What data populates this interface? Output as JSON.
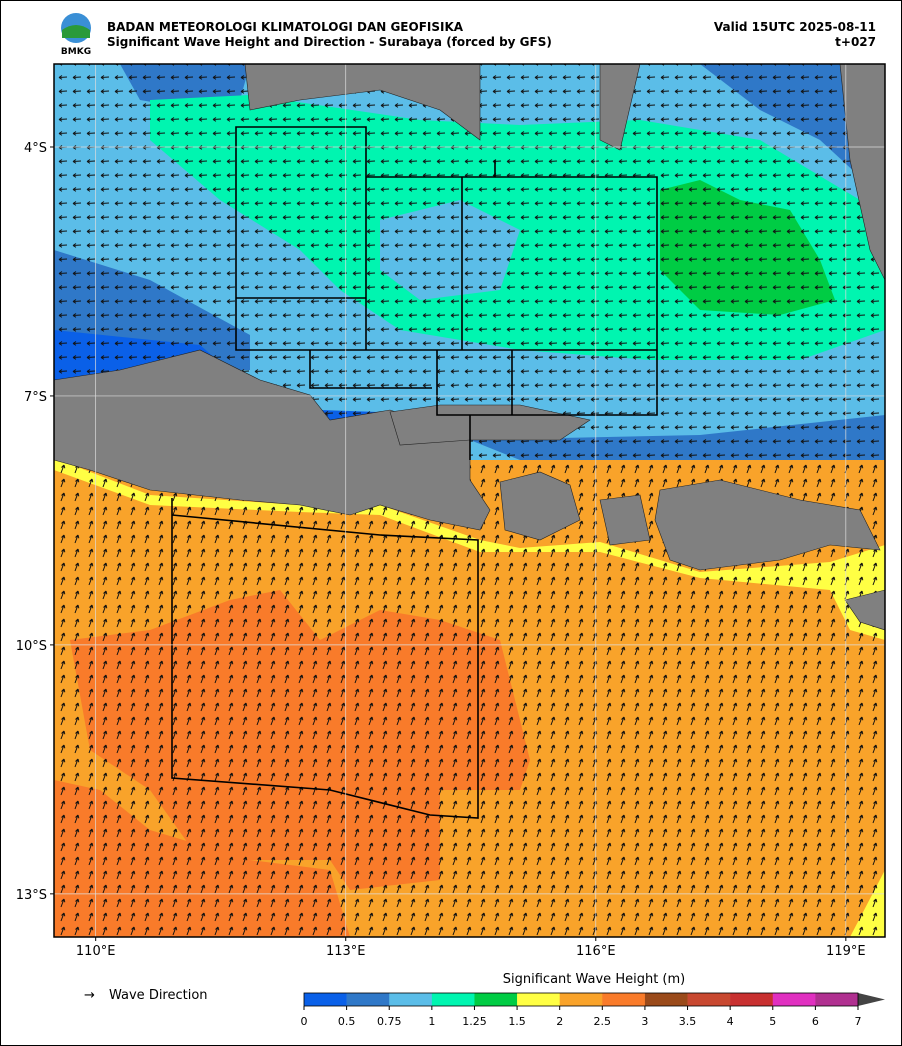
{
  "header": {
    "logo_text": "BMKG",
    "title": "BADAN METEOROLOGI KLIMATOLOGI DAN GEOFISIKA",
    "subtitle": "Significant Wave Height and Direction - Surabaya (forced by GFS)",
    "valid": "Valid 15UTC 2025-08-11",
    "lead": "t+027"
  },
  "map": {
    "lon_lim": [
      109.5,
      119.47
    ],
    "lat_lim": [
      -3,
      -13.52
    ],
    "lon_ticks": [
      {
        "value": 110,
        "label": "110°E"
      },
      {
        "value": 113,
        "label": "113°E"
      },
      {
        "value": 116,
        "label": "116°E"
      },
      {
        "value": 119,
        "label": "119°E"
      }
    ],
    "lat_ticks": [
      {
        "value": -4,
        "label": "4°S"
      },
      {
        "value": -7,
        "label": "7°S"
      },
      {
        "value": -10,
        "label": "10°S"
      },
      {
        "value": -13,
        "label": "13°S"
      }
    ],
    "grid": true
  },
  "legend": {
    "arrow": "→",
    "label": "Wave Direction"
  },
  "colorbar": {
    "title": "Significant Wave Height (m)",
    "ticks": [
      0,
      0.5,
      0.75,
      1,
      1.25,
      1.5,
      2,
      2.5,
      3,
      3.5,
      4,
      5,
      6,
      7
    ],
    "colors": [
      "#0a60e8",
      "#2f78c8",
      "#5bbde8",
      "#00f5b0",
      "#00cc44",
      "#ffff44",
      "#f9a32a",
      "#f97b2a",
      "#9a4a1a",
      "#c84830",
      "#c83030",
      "#e030c0",
      "#b03090"
    ],
    "extend_color": "#444444"
  }
}
